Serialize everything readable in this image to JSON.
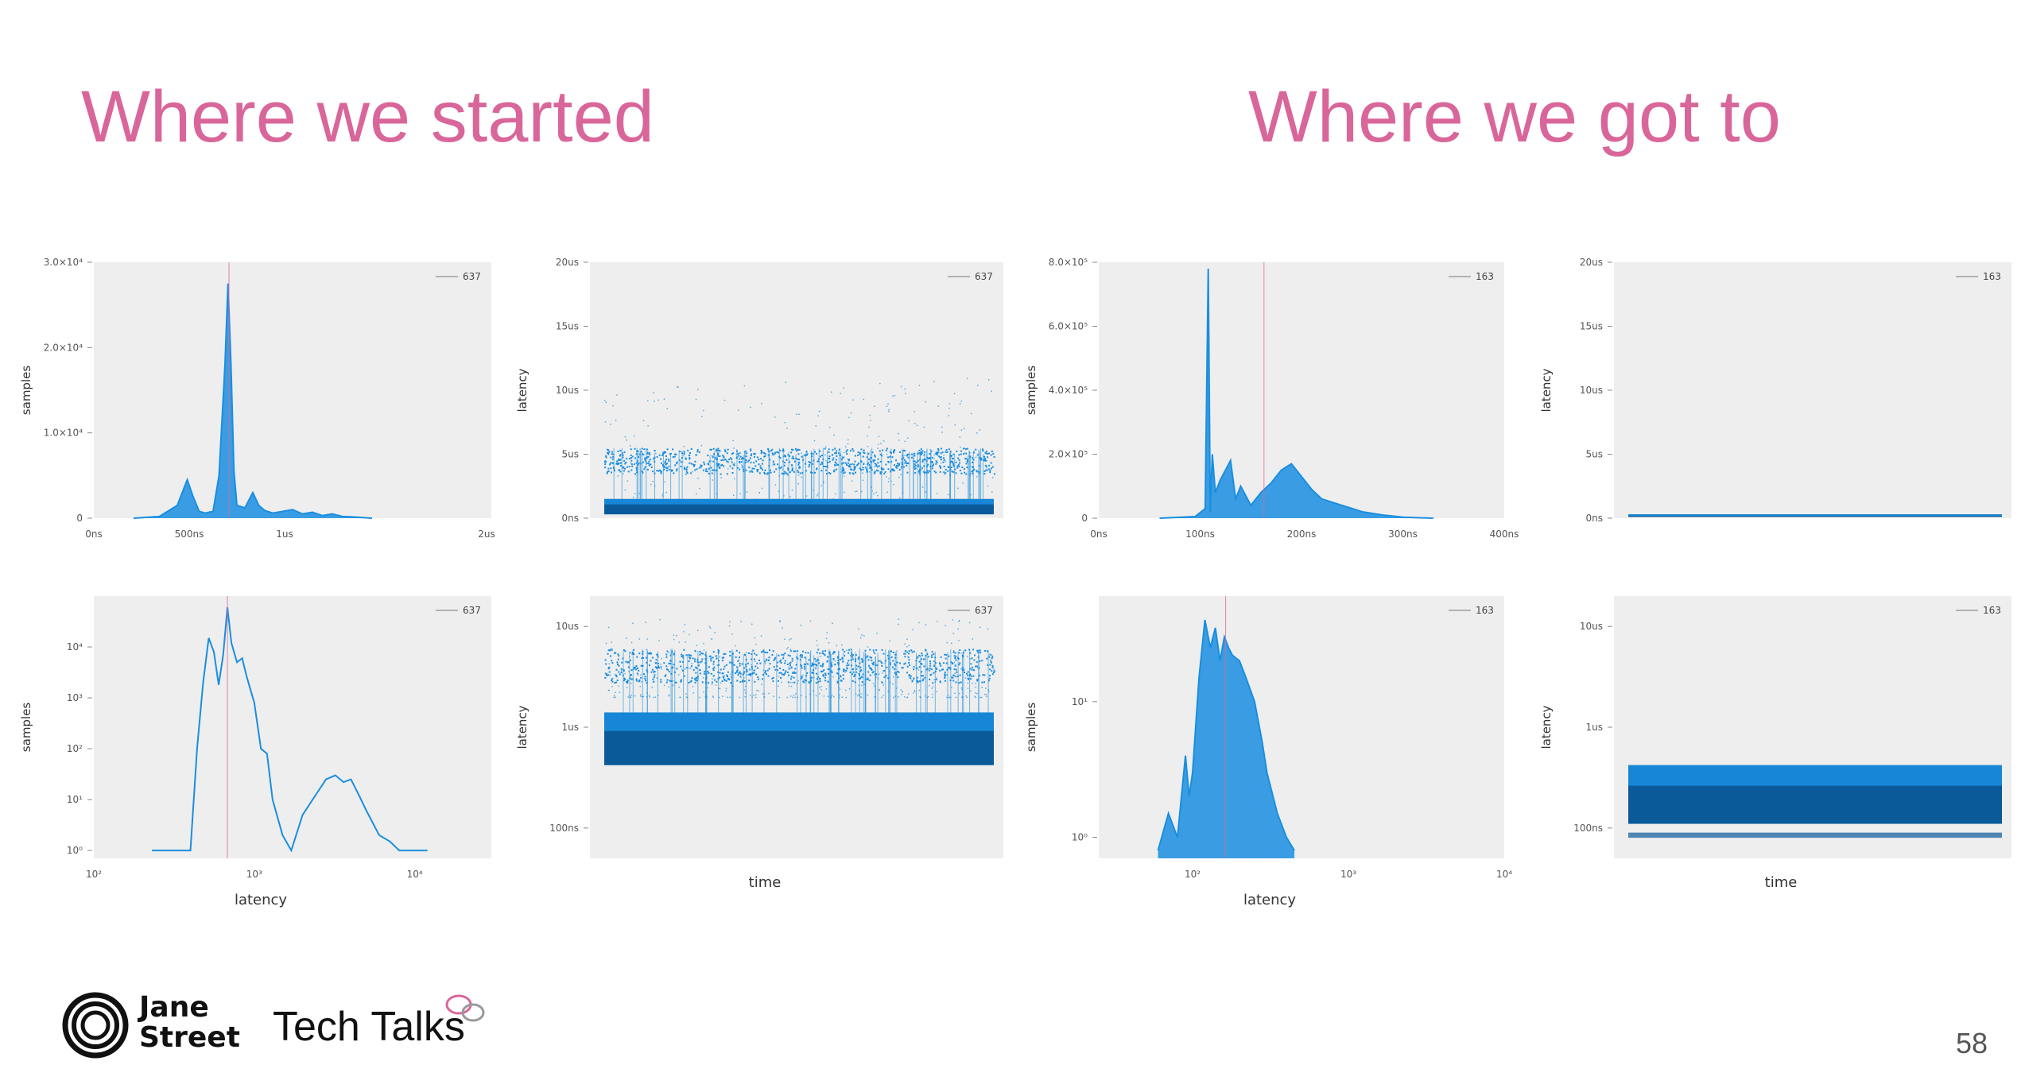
{
  "titles": {
    "left": "Where we started",
    "right": "Where we got to"
  },
  "footer": {
    "brand_line1": "Jane",
    "brand_line2": "Street",
    "series": "Tech Talks",
    "page_number": "58"
  },
  "colors": {
    "series": "#1a8ee0",
    "series_dark": "#0a5a9a",
    "marker": "#d9669a",
    "title": "#d9669a"
  },
  "chart_data": [
    {
      "id": "started-hist-linear",
      "type": "area",
      "xlabel": "",
      "ylabel": "samples",
      "xtick_labels": [
        "0ns",
        "500ns",
        "1us",
        "2us"
      ],
      "ytick_labels": [
        "0",
        "1.0×10⁴",
        "2.0×10⁴",
        "3.0×10⁴"
      ],
      "legend": "637",
      "legend_position": "top-right",
      "x_unit": "ns",
      "xlim": [
        0,
        2000
      ],
      "ylim": [
        0,
        30000
      ],
      "marker_x": 680,
      "series": [
        {
          "name": "637",
          "x": [
            200,
            330,
            420,
            470,
            500,
            530,
            560,
            600,
            630,
            660,
            675,
            690,
            705,
            720,
            760,
            800,
            830,
            860,
            900,
            1000,
            1050,
            1100,
            1150,
            1200,
            1250,
            1300,
            1400
          ],
          "y": [
            0,
            200,
            1500,
            4500,
            2500,
            800,
            600,
            800,
            5000,
            18000,
            27500,
            18000,
            5500,
            1500,
            1200,
            3000,
            1500,
            900,
            600,
            1000,
            500,
            700,
            300,
            500,
            200,
            150,
            0
          ]
        }
      ]
    },
    {
      "id": "started-time-linear",
      "type": "scatter",
      "xlabel": "",
      "ylabel": "latency",
      "ytick_labels": [
        "0ns",
        "5us",
        "10us",
        "15us",
        "20us"
      ],
      "legend": "637",
      "legend_position": "top-right",
      "y_unit": "us",
      "ylim": [
        0,
        20
      ],
      "bands": [
        {
          "role": "sparse",
          "ymin": 0.5,
          "ymax": 11
        },
        {
          "role": "upper-cluster",
          "ymin": 3.5,
          "ymax": 5.5
        },
        {
          "role": "dense-base",
          "ymin": 0.3,
          "ymax": 1.5
        }
      ]
    },
    {
      "id": "started-hist-log",
      "type": "line",
      "xlabel": "latency",
      "ylabel": "samples",
      "xtick_labels": [
        "10²",
        "10³",
        "10⁴"
      ],
      "ytick_labels": [
        "10⁰",
        "10¹",
        "10²",
        "10³",
        "10⁴"
      ],
      "x_scale": "log",
      "y_scale": "log",
      "xlim": [
        100,
        30000
      ],
      "ylim": [
        0.7,
        100000
      ],
      "legend": "637",
      "legend_position": "top-right",
      "marker_x": 680,
      "series": [
        {
          "name": "637",
          "x": [
            230,
            250,
            300,
            330,
            400,
            440,
            480,
            520,
            560,
            600,
            640,
            680,
            720,
            780,
            840,
            900,
            1000,
            1100,
            1200,
            1300,
            1500,
            1700,
            2000,
            2400,
            2800,
            3200,
            3600,
            4000,
            4500,
            5000,
            6000,
            7000,
            8000,
            9000,
            10000,
            12000
          ],
          "y": [
            1,
            1,
            1,
            1,
            1,
            100,
            2000,
            15000,
            8000,
            1800,
            7000,
            60000,
            12000,
            5000,
            6000,
            2500,
            800,
            100,
            80,
            10,
            2,
            1,
            5,
            12,
            25,
            30,
            22,
            25,
            12,
            6,
            2,
            1.5,
            1,
            1,
            1,
            1
          ]
        }
      ]
    },
    {
      "id": "started-time-log",
      "type": "scatter",
      "xlabel": "time",
      "ylabel": "latency",
      "ytick_labels": [
        "100ns",
        "1us",
        "10us"
      ],
      "y_scale": "log",
      "y_unit": "ns",
      "ylim": [
        50,
        20000
      ],
      "legend": "637",
      "legend_position": "top-right",
      "bands": [
        {
          "role": "sparse",
          "ymin": 2000,
          "ymax": 12000
        },
        {
          "role": "upper-cluster",
          "ymin": 2800,
          "ymax": 6000
        },
        {
          "role": "dense-base",
          "ymin": 420,
          "ymax": 1400
        }
      ]
    },
    {
      "id": "got-hist-linear",
      "type": "area",
      "xlabel": "",
      "ylabel": "samples",
      "xtick_labels": [
        "0ns",
        "100ns",
        "200ns",
        "300ns",
        "400ns"
      ],
      "ytick_labels": [
        "0",
        "2.0×10⁵",
        "4.0×10⁵",
        "6.0×10⁵",
        "8.0×10⁵"
      ],
      "x_unit": "ns",
      "xlim": [
        0,
        400
      ],
      "ylim": [
        0,
        800000
      ],
      "legend": "163",
      "legend_position": "top-right",
      "marker_x": 163,
      "series": [
        {
          "name": "163",
          "x": [
            60,
            95,
            105,
            108,
            110,
            112,
            115,
            120,
            130,
            135,
            140,
            150,
            160,
            170,
            180,
            190,
            200,
            210,
            220,
            240,
            260,
            280,
            300,
            330
          ],
          "y": [
            0,
            5000,
            30000,
            780000,
            20000,
            200000,
            80000,
            120000,
            180000,
            60000,
            100000,
            40000,
            80000,
            110000,
            150000,
            170000,
            130000,
            90000,
            60000,
            40000,
            20000,
            10000,
            3000,
            0
          ]
        }
      ]
    },
    {
      "id": "got-time-linear",
      "type": "scatter",
      "xlabel": "",
      "ylabel": "latency",
      "ytick_labels": [
        "0ns",
        "5us",
        "10us",
        "15us",
        "20us"
      ],
      "legend": "163",
      "legend_position": "top-right",
      "y_unit": "us",
      "ylim": [
        0,
        20
      ],
      "bands": [
        {
          "role": "dense-base",
          "ymin": 0.1,
          "ymax": 0.3
        }
      ]
    },
    {
      "id": "got-hist-log",
      "type": "area",
      "xlabel": "latency",
      "ylabel": "samples",
      "xtick_labels": [
        "10²",
        "10³",
        "10⁴"
      ],
      "ytick_labels": [
        "10⁰",
        "10¹"
      ],
      "x_scale": "log",
      "y_scale": "log",
      "xlim": [
        25,
        10000
      ],
      "ylim": [
        0.7,
        60
      ],
      "legend": "163",
      "legend_position": "top-right",
      "marker_x": 163,
      "series": [
        {
          "name": "163",
          "x": [
            60,
            70,
            80,
            90,
            95,
            100,
            110,
            120,
            130,
            140,
            150,
            160,
            170,
            180,
            200,
            220,
            250,
            280,
            300,
            350,
            400,
            450
          ],
          "y": [
            0.8,
            1.5,
            1,
            4,
            2,
            3,
            15,
            40,
            25,
            35,
            20,
            30,
            25,
            22,
            20,
            15,
            10,
            5,
            3,
            1.5,
            1,
            0.8
          ]
        }
      ]
    },
    {
      "id": "got-time-log",
      "type": "scatter",
      "xlabel": "time",
      "ylabel": "latency",
      "ytick_labels": [
        "100ns",
        "1us",
        "10us"
      ],
      "y_scale": "log",
      "y_unit": "ns",
      "ylim": [
        50,
        20000
      ],
      "legend": "163",
      "legend_position": "top-right",
      "bands": [
        {
          "role": "dense-base",
          "ymin": 110,
          "ymax": 420
        },
        {
          "role": "lower-line",
          "ymin": 80,
          "ymax": 90
        }
      ]
    }
  ]
}
